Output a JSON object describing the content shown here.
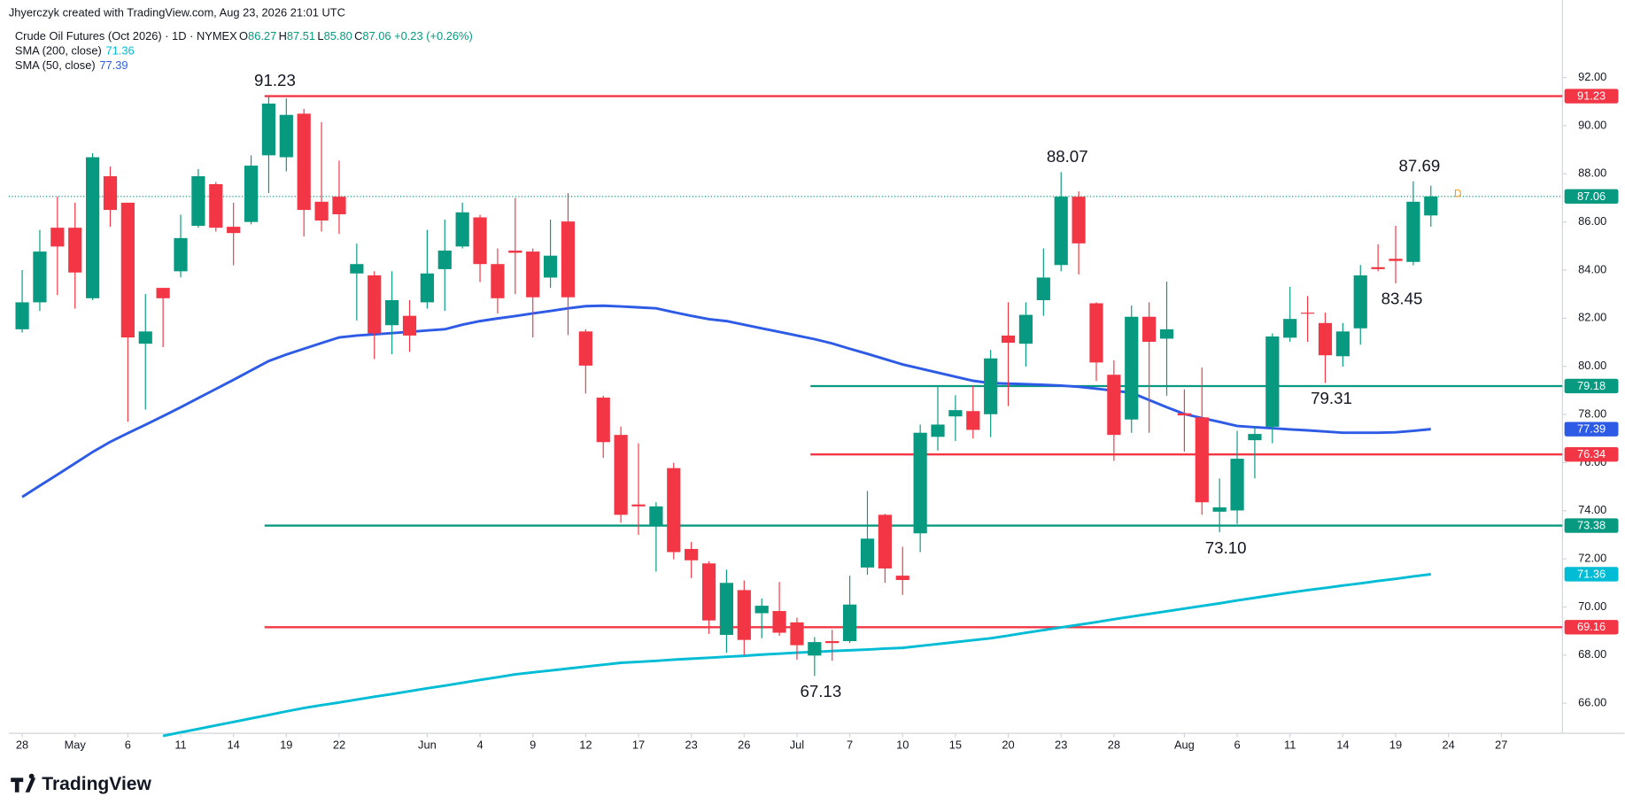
{
  "header": {
    "credit": "Jhyerczyk created with TradingView.com, Aug 23, 2026 21:01 UTC",
    "brand": "TradingView"
  },
  "chart_data": {
    "type": "candlestick",
    "symbol": "Crude Oil Futures (Oct 2026) · 1D · NYMEX",
    "ohlc": [
      {
        "key": "O",
        "value": "86.27"
      },
      {
        "key": "H",
        "value": "87.51"
      },
      {
        "key": "L",
        "value": "85.80"
      },
      {
        "key": "C",
        "value": "87.06"
      }
    ],
    "change": "+0.23 (+0.26%)",
    "marker": "D",
    "up_color": "#089981",
    "down_color": "#f23645",
    "open": [
      81.54,
      82.66,
      85.76,
      85.76,
      82.83,
      87.9,
      86.8,
      80.94,
      83.26,
      83.95,
      85.84,
      87.57,
      85.8,
      86.0,
      88.77,
      88.69,
      90.5,
      86.84,
      87.05,
      83.86,
      83.78,
      81.71,
      82.1,
      82.66,
      84.04,
      84.98,
      86.19,
      84.25,
      84.81,
      84.77,
      83.69,
      86.02,
      81.45,
      78.7,
      77.15,
      74.26,
      73.4,
      75.77,
      72.41,
      71.81,
      68.84,
      70.7,
      69.74,
      69.83,
      69.36,
      67.98,
      68.58,
      68.58,
      71.64,
      73.83,
      71.3,
      73.06,
      77.07,
      77.92,
      78.14,
      78.01,
      81.28,
      80.94,
      82.75,
      84.21,
      87.05,
      82.62,
      79.65,
      77.79,
      82.06,
      81.15,
      78.05,
      77.88,
      73.96,
      74.01,
      76.93,
      77.49,
      81.19,
      82.23,
      81.8,
      80.42,
      81.58,
      84.12,
      84.47,
      84.34,
      86.27
    ],
    "high": [
      84.0,
      85.67,
      87.05,
      86.8,
      88.86,
      88.3,
      86.8,
      83.0,
      83.26,
      86.3,
      88.2,
      87.66,
      86.8,
      88.77,
      91.23,
      91.14,
      90.7,
      90.15,
      88.55,
      85.1,
      83.95,
      83.95,
      82.75,
      85.67,
      86.1,
      86.8,
      86.3,
      84.9,
      87.0,
      84.9,
      86.1,
      87.2,
      81.54,
      78.78,
      77.5,
      76.8,
      74.35,
      75.99,
      72.7,
      71.9,
      71.55,
      71.1,
      70.35,
      71.04,
      69.55,
      68.75,
      69.05,
      71.3,
      74.82,
      73.87,
      72.5,
      77.58,
      79.2,
      78.8,
      79.2,
      80.68,
      82.66,
      82.66,
      84.9,
      88.07,
      87.27,
      82.66,
      80.25,
      82.53,
      82.66,
      83.52,
      79.04,
      79.95,
      75.34,
      77.32,
      77.49,
      81.37,
      83.3,
      82.92,
      82.23,
      81.8,
      84.21,
      85.07,
      85.84,
      87.69,
      87.51
    ],
    "low": [
      81.4,
      82.3,
      82.96,
      82.4,
      82.75,
      85.8,
      77.7,
      78.2,
      80.8,
      83.7,
      85.76,
      85.6,
      84.2,
      85.9,
      87.2,
      88.1,
      85.4,
      85.6,
      85.5,
      81.9,
      80.3,
      80.5,
      80.6,
      82.4,
      82.3,
      84.9,
      83.5,
      82.2,
      83.0,
      81.2,
      83.26,
      81.3,
      78.87,
      76.2,
      73.5,
      73.0,
      71.47,
      71.98,
      71.2,
      68.88,
      68.1,
      68.0,
      68.7,
      68.8,
      67.81,
      67.13,
      67.76,
      68.5,
      71.34,
      71.0,
      70.5,
      72.28,
      76.5,
      76.9,
      77.0,
      77.06,
      78.35,
      79.99,
      82.1,
      83.95,
      83.82,
      79.39,
      76.07,
      77.24,
      77.24,
      78.78,
      76.46,
      73.83,
      73.1,
      73.45,
      75.34,
      76.8,
      81.02,
      81.02,
      79.31,
      79.99,
      80.9,
      83.95,
      83.45,
      84.2,
      85.8
    ],
    "close": [
      82.66,
      84.77,
      84.98,
      83.9,
      88.69,
      86.5,
      81.2,
      81.45,
      82.83,
      85.33,
      87.9,
      85.76,
      85.54,
      88.34,
      90.92,
      90.45,
      86.5,
      86.06,
      86.32,
      84.25,
      81.37,
      82.75,
      81.28,
      83.86,
      84.81,
      86.4,
      84.25,
      82.83,
      84.72,
      82.87,
      84.6,
      82.87,
      80.03,
      76.85,
      73.83,
      74.18,
      74.18,
      72.28,
      71.94,
      69.44,
      71.0,
      68.63,
      70.05,
      68.93,
      68.41,
      68.54,
      68.5,
      70.1,
      72.84,
      71.6,
      71.12,
      77.24,
      77.58,
      78.18,
      77.36,
      80.33,
      80.98,
      82.14,
      83.69,
      87.05,
      85.11,
      80.16,
      77.15,
      82.06,
      81.02,
      81.54,
      77.96,
      74.35,
      74.14,
      76.16,
      77.19,
      81.24,
      81.97,
      82.19,
      80.46,
      81.45,
      83.78,
      84.04,
      84.38,
      86.84,
      87.06
    ],
    "series": [
      {
        "name": "SMA (200, close)",
        "color": "#00bcd4",
        "last": 71.36,
        "values": [
          null,
          null,
          null,
          null,
          null,
          null,
          null,
          null,
          64.64,
          64.79,
          64.93,
          65.08,
          65.22,
          65.37,
          65.51,
          65.66,
          65.8,
          65.92,
          66.03,
          66.15,
          66.27,
          66.38,
          66.5,
          66.62,
          66.73,
          66.85,
          66.97,
          67.08,
          67.2,
          67.28,
          67.36,
          67.44,
          67.52,
          67.6,
          67.68,
          67.72,
          67.76,
          67.81,
          67.85,
          67.89,
          67.93,
          67.97,
          68.02,
          68.06,
          68.1,
          68.13,
          68.17,
          68.2,
          68.23,
          68.27,
          68.3,
          68.38,
          68.46,
          68.54,
          68.62,
          68.7,
          68.81,
          68.93,
          69.04,
          69.15,
          69.26,
          69.37,
          69.49,
          69.6,
          69.71,
          69.82,
          69.93,
          70.04,
          70.15,
          70.27,
          70.38,
          70.49,
          70.6,
          70.7,
          70.79,
          70.89,
          70.98,
          71.08,
          71.17,
          71.27,
          71.36
        ]
      },
      {
        "name": "SMA (50, close)",
        "color": "#2e5be6",
        "last": 77.39,
        "values": [
          74.57,
          75.04,
          75.5,
          75.97,
          76.44,
          76.86,
          77.22,
          77.57,
          77.93,
          78.3,
          78.68,
          79.06,
          79.44,
          79.83,
          80.22,
          80.49,
          80.73,
          80.97,
          81.2,
          81.28,
          81.33,
          81.38,
          81.43,
          81.49,
          81.54,
          81.73,
          81.88,
          81.99,
          82.09,
          82.2,
          82.3,
          82.41,
          82.5,
          82.52,
          82.49,
          82.45,
          82.41,
          82.25,
          82.1,
          81.96,
          81.88,
          81.73,
          81.58,
          81.43,
          81.28,
          81.13,
          80.95,
          80.73,
          80.52,
          80.3,
          80.08,
          79.91,
          79.74,
          79.57,
          79.4,
          79.3,
          79.28,
          79.26,
          79.23,
          79.2,
          79.15,
          79.07,
          78.99,
          78.9,
          78.6,
          78.3,
          78.02,
          77.85,
          77.69,
          77.52,
          77.47,
          77.43,
          77.38,
          77.34,
          77.29,
          77.24,
          77.24,
          77.24,
          77.26,
          77.32,
          77.39
        ]
      }
    ],
    "levels": [
      {
        "value": 91.23,
        "color": "#f23645",
        "from": 14
      },
      {
        "value": 79.18,
        "color": "#089981",
        "from": 45
      },
      {
        "value": 76.34,
        "color": "#f23645",
        "from": 45
      },
      {
        "value": 73.38,
        "color": "#089981",
        "from": 14
      },
      {
        "value": 69.16,
        "color": "#f23645",
        "from": 14
      }
    ],
    "annotations": [
      {
        "text": "91.23",
        "at": 14,
        "side": "above"
      },
      {
        "text": "88.07",
        "at": 59,
        "side": "above"
      },
      {
        "text": "87.69",
        "at": 79,
        "side": "above"
      },
      {
        "text": "83.45",
        "at": 78,
        "side": "below"
      },
      {
        "text": "79.31",
        "at": 74,
        "side": "below"
      },
      {
        "text": "73.10",
        "at": 68,
        "side": "below"
      },
      {
        "text": "67.13",
        "at": 45,
        "side": "below"
      }
    ],
    "ylim": [
      64.75,
      94.88
    ],
    "yticks": [
      {
        "value": 66,
        "label": "66.00"
      },
      {
        "value": 68,
        "label": "68.00"
      },
      {
        "value": 70,
        "label": "70.00"
      },
      {
        "value": 72,
        "label": "72.00"
      },
      {
        "value": 74,
        "label": "74.00"
      },
      {
        "value": 76,
        "label": "76.00"
      },
      {
        "value": 78,
        "label": "78.00"
      },
      {
        "value": 80,
        "label": "80.00"
      },
      {
        "value": 82,
        "label": "82.00"
      },
      {
        "value": 84,
        "label": "84.00"
      },
      {
        "value": 86,
        "label": "86.00"
      },
      {
        "value": 88,
        "label": "88.00"
      },
      {
        "value": 90,
        "label": "90.00"
      },
      {
        "value": 92,
        "label": "92.00"
      }
    ],
    "xticks": [
      {
        "value": 0,
        "label": "28"
      },
      {
        "value": 3,
        "label": "May"
      },
      {
        "value": 6,
        "label": "6"
      },
      {
        "value": 9,
        "label": "11"
      },
      {
        "value": 12,
        "label": "14"
      },
      {
        "value": 15,
        "label": "19"
      },
      {
        "value": 18,
        "label": "22"
      },
      {
        "value": 23,
        "label": "Jun"
      },
      {
        "value": 26,
        "label": "4"
      },
      {
        "value": 29,
        "label": "9"
      },
      {
        "value": 32,
        "label": "12"
      },
      {
        "value": 35,
        "label": "17"
      },
      {
        "value": 38,
        "label": "23"
      },
      {
        "value": 41,
        "label": "26"
      },
      {
        "value": 44,
        "label": "Jul"
      },
      {
        "value": 47,
        "label": "7"
      },
      {
        "value": 50,
        "label": "10"
      },
      {
        "value": 53,
        "label": "15"
      },
      {
        "value": 56,
        "label": "20"
      },
      {
        "value": 59,
        "label": "23"
      },
      {
        "value": 62,
        "label": "28"
      },
      {
        "value": 66,
        "label": "Aug"
      },
      {
        "value": 69,
        "label": "6"
      },
      {
        "value": 72,
        "label": "11"
      },
      {
        "value": 75,
        "label": "14"
      },
      {
        "value": 78,
        "label": "19"
      },
      {
        "value": 81,
        "label": "24"
      },
      {
        "value": 84,
        "label": "27"
      }
    ]
  }
}
